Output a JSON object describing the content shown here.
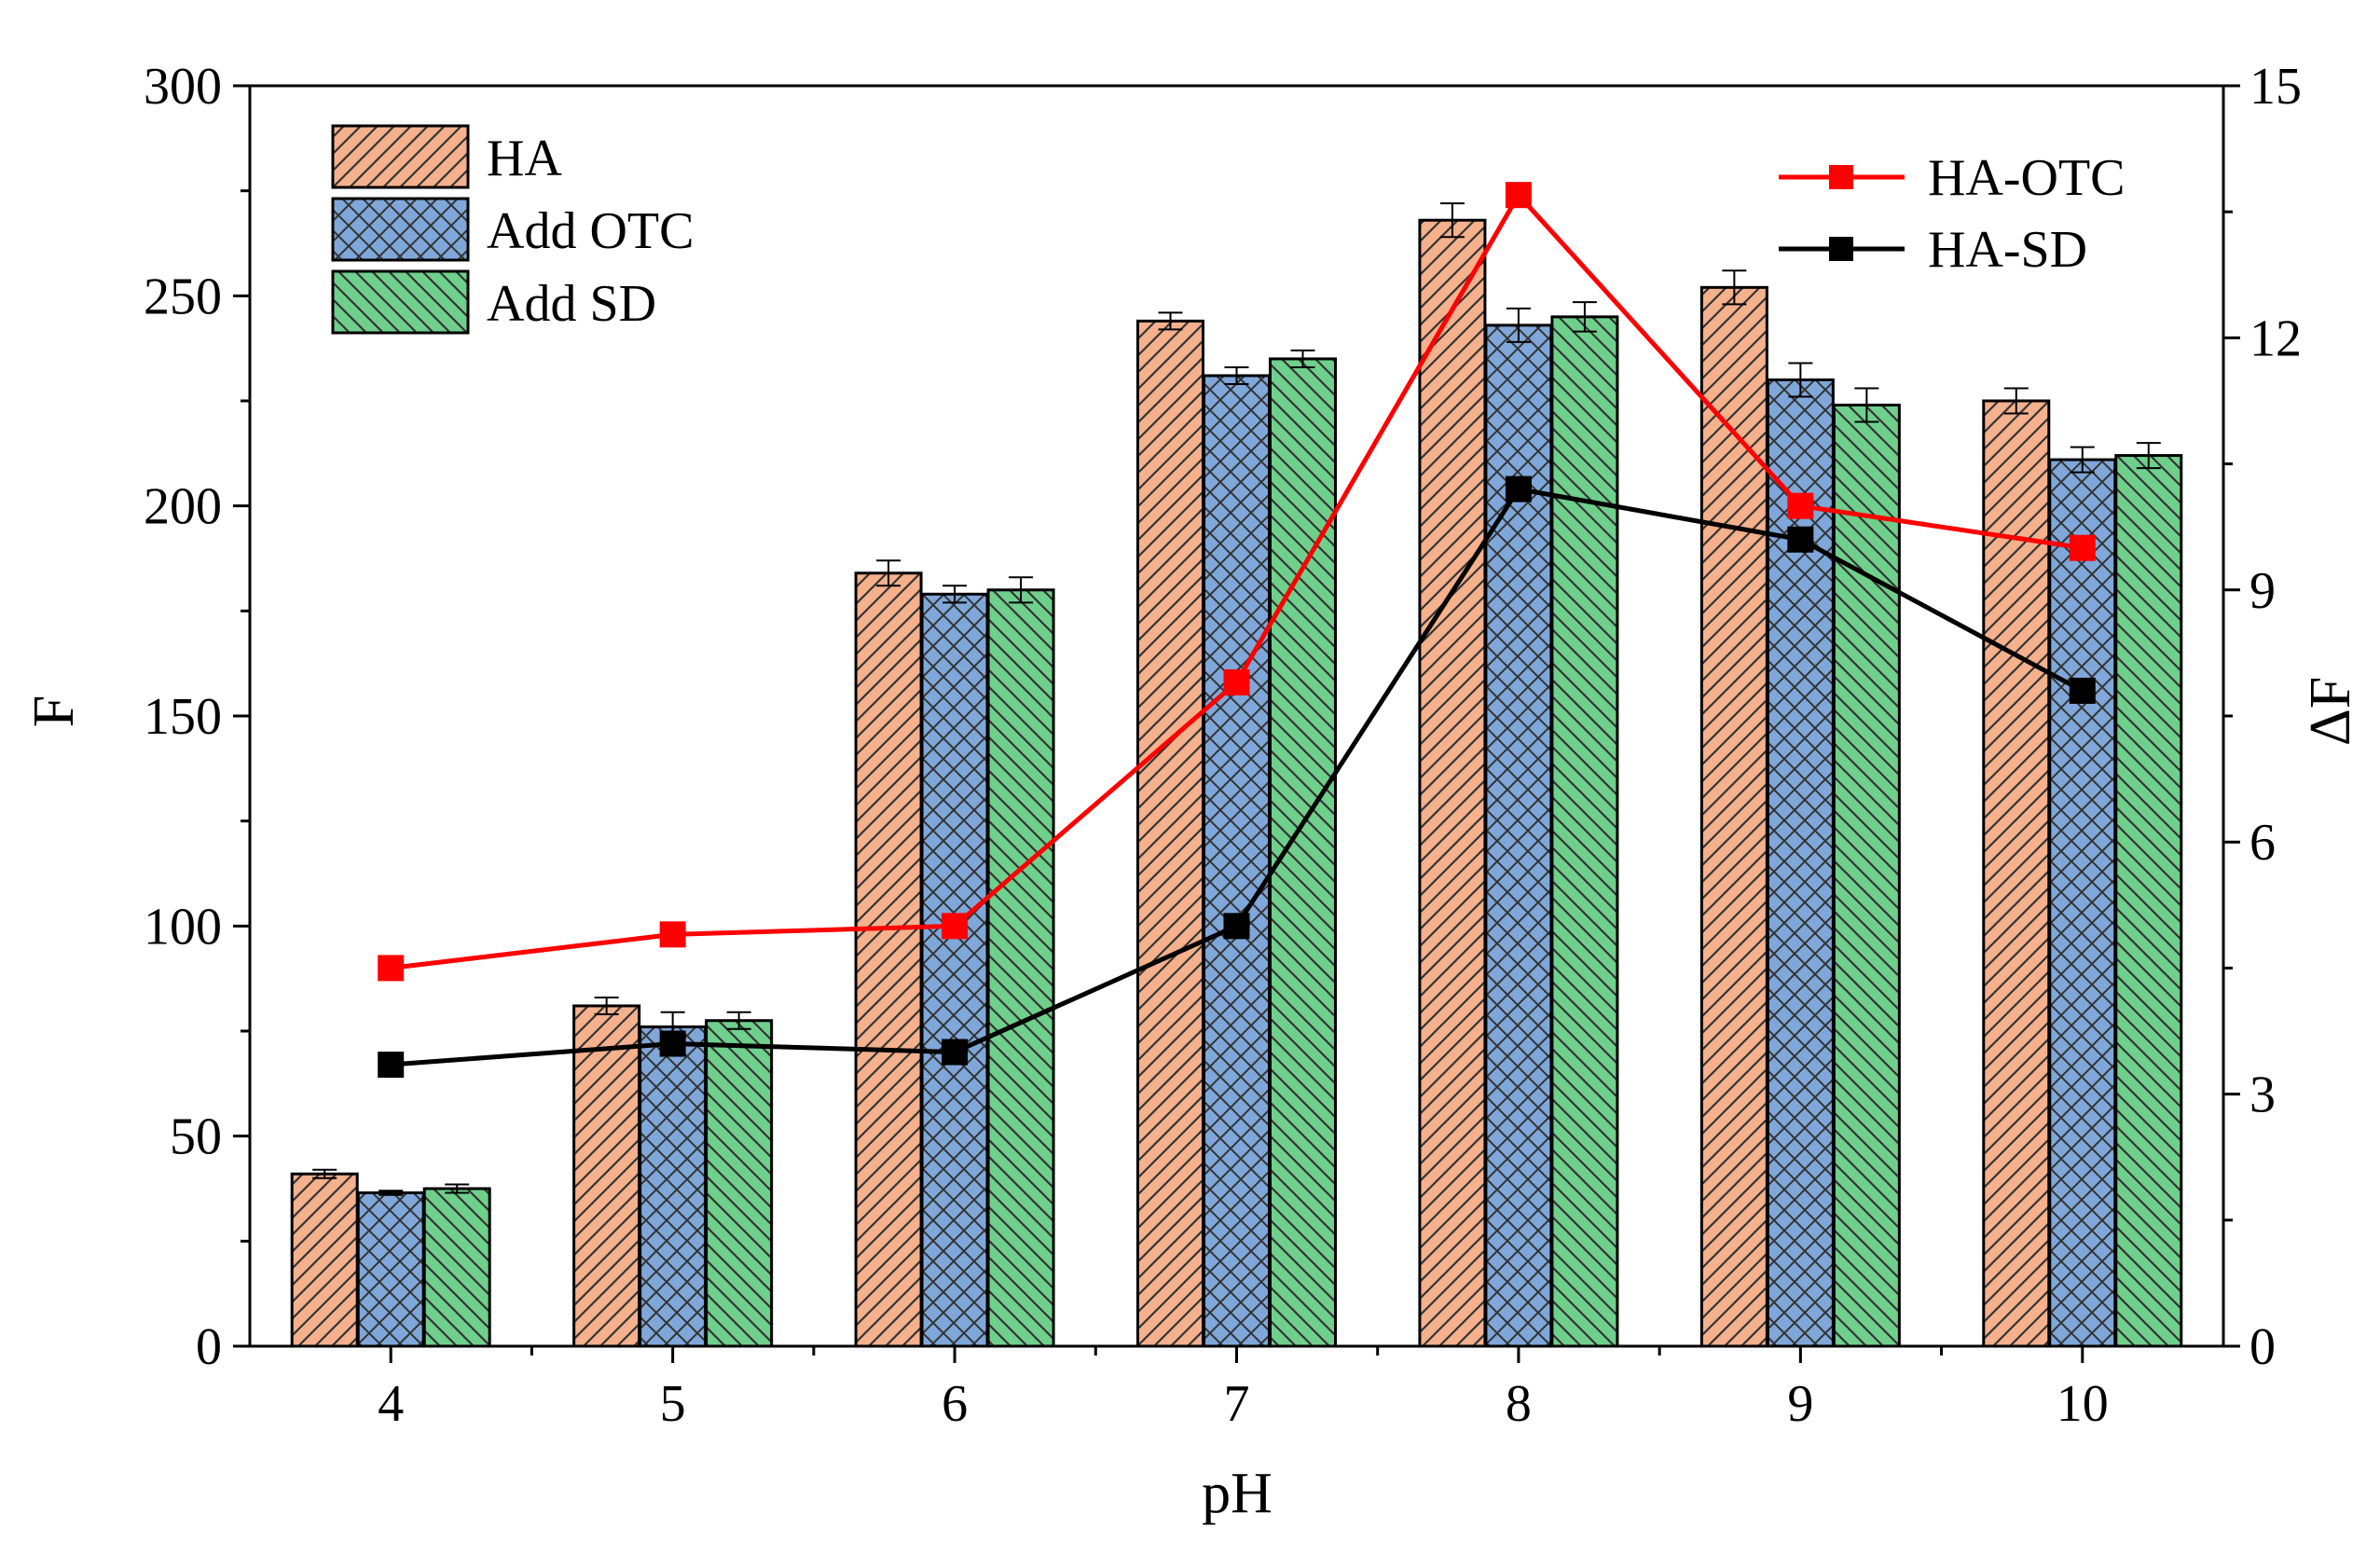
{
  "chart_data": {
    "type": "bar",
    "xlabel": "pH",
    "ylabel_left": "F",
    "ylabel_right": "ΔF",
    "categories": [
      "4",
      "5",
      "6",
      "7",
      "8",
      "9",
      "10"
    ],
    "ylim_left": [
      0,
      300
    ],
    "yticks_left": [
      "0",
      "50",
      "100",
      "150",
      "200",
      "250",
      "300"
    ],
    "ylim_right": [
      0,
      15
    ],
    "yticks_right": [
      "0",
      "3",
      "6",
      "9",
      "12",
      "15"
    ],
    "bar_series": [
      {
        "name": "HA",
        "color": "#F5B08C",
        "hatch": "diagonal-forward",
        "values": [
          41,
          81,
          184,
          244,
          268,
          252,
          225
        ],
        "errors": [
          1,
          2,
          3,
          2,
          4,
          4,
          3
        ]
      },
      {
        "name": "Add OTC",
        "color": "#7FA7D9",
        "hatch": "crosshatch",
        "values": [
          36.5,
          76,
          179,
          231,
          243,
          230,
          211
        ],
        "errors": [
          0.5,
          3.5,
          2,
          2,
          4,
          4,
          3
        ]
      },
      {
        "name": "Add SD",
        "color": "#6FD08C",
        "hatch": "diagonal-back",
        "values": [
          37.5,
          77.5,
          180,
          235,
          245,
          224,
          212
        ],
        "errors": [
          1,
          2,
          3,
          2,
          3.5,
          4,
          3
        ]
      }
    ],
    "line_series": [
      {
        "name": "HA-OTC",
        "color": "#FF0000",
        "axis": "right",
        "values": [
          4.5,
          4.9,
          5.0,
          7.9,
          13.7,
          10.0,
          9.5
        ]
      },
      {
        "name": "HA-SD",
        "color": "#000000",
        "axis": "right",
        "values": [
          3.35,
          3.6,
          3.5,
          5.0,
          10.2,
          9.6,
          7.8
        ]
      }
    ],
    "legend_bars_placement": "top-left",
    "legend_lines_placement": "top-right",
    "grid": false
  }
}
